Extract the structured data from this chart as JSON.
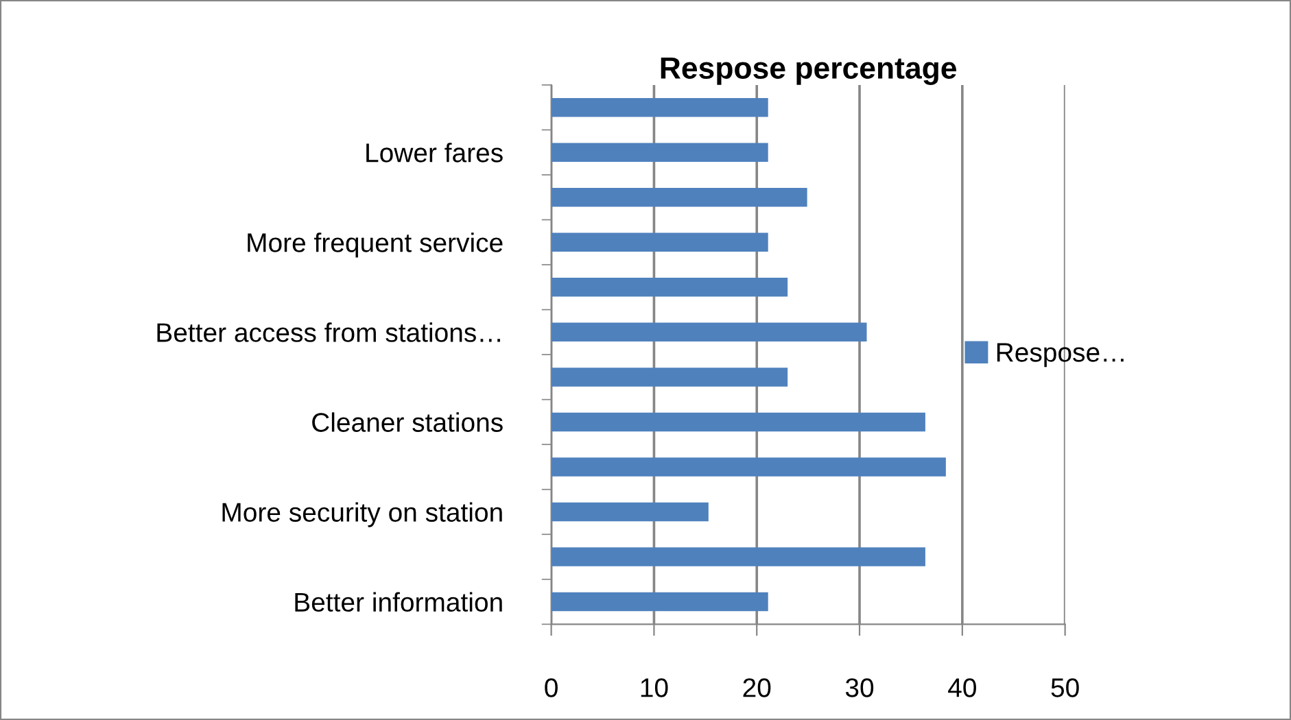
{
  "chart_data": {
    "type": "bar",
    "orientation": "horizontal",
    "title": "Respose percentage",
    "categories": [
      null,
      "Lower fares",
      null,
      "More frequent service",
      null,
      "Better access from stations…",
      null,
      "Cleaner stations",
      null,
      "More security on station",
      null,
      "Better information"
    ],
    "series": [
      {
        "name": "Respose…",
        "color": "#4f81bd",
        "values": [
          21.1,
          21.1,
          24.9,
          21.1,
          23.0,
          30.7,
          23.0,
          36.4,
          38.4,
          15.3,
          36.4,
          21.1
        ]
      }
    ],
    "xlim": [
      0,
      50
    ],
    "xticks": [
      0,
      10,
      20,
      30,
      40,
      50
    ],
    "grid": "x",
    "legend": "right"
  }
}
